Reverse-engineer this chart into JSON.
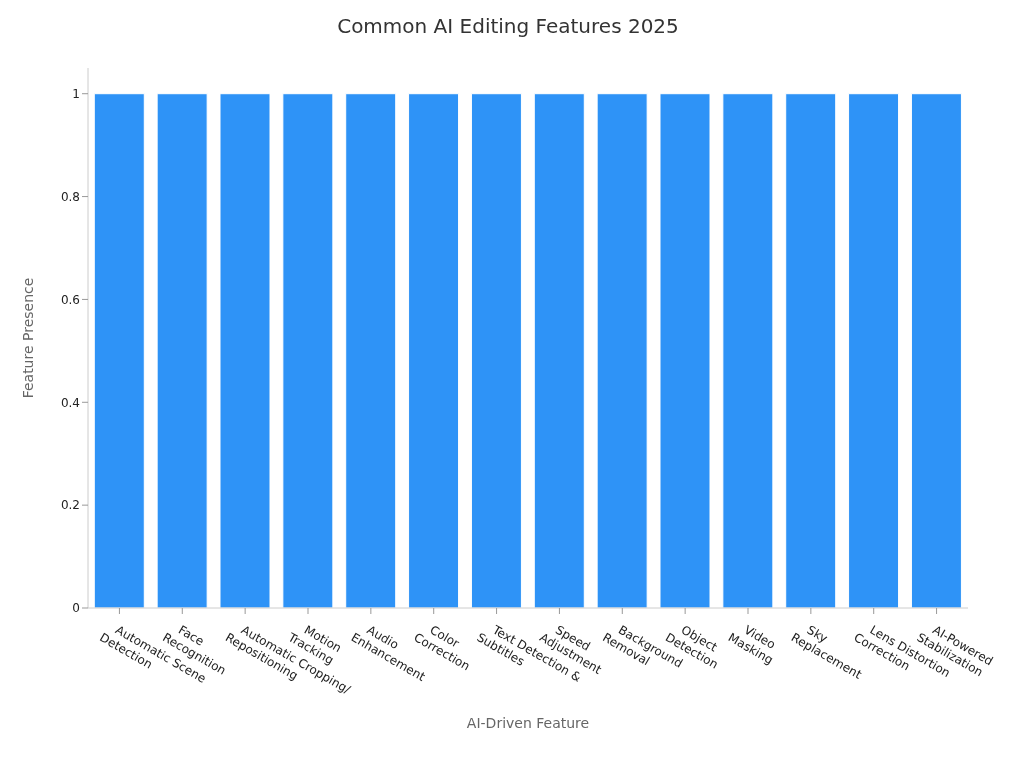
{
  "chart_data": {
    "type": "bar",
    "title": "Common AI Editing Features 2025",
    "xlabel": "AI-Driven Feature",
    "ylabel": "Feature Presence",
    "categories": [
      "Automatic Scene\nDetection",
      "Face\nRecognition",
      "Automatic Cropping/\nRepositioning",
      "Motion\nTracking",
      "Audio\nEnhancement",
      "Color\nCorrection",
      "Text Detection &\nSubtitles",
      "Speed\nAdjustment",
      "Background\nRemoval",
      "Object\nDetection",
      "Video\nMasking",
      "Sky\nReplacement",
      "Lens Distortion\nCorrection",
      "AI-Powered\nStabilization"
    ],
    "values": [
      1,
      1,
      1,
      1,
      1,
      1,
      1,
      1,
      1,
      1,
      1,
      1,
      1,
      1
    ],
    "color": "#2e93f7",
    "ylim": [
      0,
      1.05
    ],
    "yticks": [
      0,
      0.2,
      0.4,
      0.6,
      0.8,
      1
    ],
    "grid": false,
    "legend": false
  }
}
